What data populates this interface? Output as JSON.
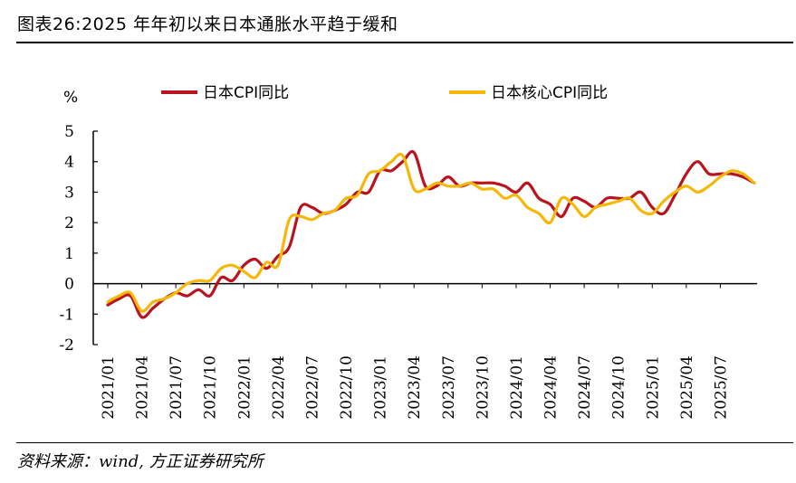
{
  "header": {
    "title": "图表26:2025 年年初以来日本通胀水平趋于缓和"
  },
  "footer": {
    "source": "资料来源：wind, 方正证券研究所"
  },
  "chart_data": {
    "type": "line",
    "ylabel": "%",
    "ylim": [
      -2,
      5
    ],
    "yticks": [
      "5",
      "4",
      "3",
      "2",
      "1",
      "0",
      "-1",
      "-2"
    ],
    "xticks": [
      "2021/01",
      "2021/04",
      "2021/07",
      "2021/10",
      "2022/01",
      "2022/04",
      "2022/07",
      "2022/10",
      "2023/01",
      "2023/04",
      "2023/07",
      "2023/10",
      "2024/01",
      "2024/04",
      "2024/07",
      "2024/10",
      "2025/01",
      "2025/04",
      "2025/07"
    ],
    "legend": "top",
    "series": [
      {
        "name": "日本CPI同比",
        "color": "#b8141e",
        "values": [
          -0.7,
          -0.5,
          -0.4,
          -1.1,
          -0.8,
          -0.5,
          -0.3,
          -0.4,
          -0.2,
          -0.4,
          0.2,
          0.1,
          0.6,
          0.8,
          0.5,
          0.9,
          1.2,
          2.5,
          2.5,
          2.3,
          2.4,
          2.6,
          3.0,
          3.0,
          3.7,
          3.7,
          4.0,
          4.3,
          3.2,
          3.2,
          3.5,
          3.2,
          3.3,
          3.3,
          3.3,
          3.2,
          3.0,
          3.3,
          2.8,
          2.6,
          2.2,
          2.8,
          2.7,
          2.5,
          2.8,
          2.8,
          2.8,
          3.0,
          2.5,
          2.3,
          2.9,
          3.6,
          4.0,
          3.6,
          3.6,
          3.6,
          3.5,
          3.3
        ]
      },
      {
        "name": "日本核心CPI同比",
        "color": "#f5b80a",
        "values": [
          -0.6,
          -0.4,
          -0.3,
          -0.9,
          -0.6,
          -0.5,
          -0.3,
          0.0,
          0.1,
          0.1,
          0.5,
          0.6,
          0.4,
          0.2,
          0.7,
          0.6,
          2.1,
          2.2,
          2.1,
          2.3,
          2.4,
          2.8,
          2.9,
          3.6,
          3.7,
          4.0,
          4.2,
          3.1,
          3.1,
          3.3,
          3.2,
          3.2,
          3.3,
          3.1,
          3.1,
          2.8,
          2.9,
          2.5,
          2.3,
          2.0,
          2.8,
          2.6,
          2.2,
          2.5,
          2.6,
          2.7,
          2.8,
          2.4,
          2.3,
          2.7,
          3.0,
          3.2,
          3.0,
          3.2,
          3.5,
          3.7,
          3.6,
          3.3
        ]
      }
    ]
  }
}
